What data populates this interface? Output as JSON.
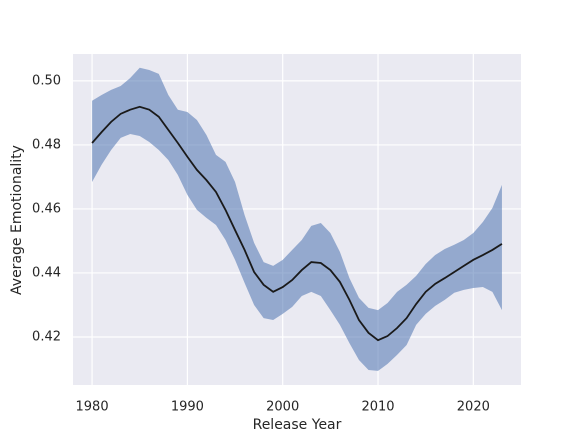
{
  "chart_data": {
    "type": "line",
    "xlabel": "Release Year",
    "ylabel": "Average Emotionality",
    "x": [
      1980,
      1981,
      1982,
      1983,
      1984,
      1985,
      1986,
      1987,
      1988,
      1989,
      1990,
      1991,
      1992,
      1993,
      1994,
      1995,
      1996,
      1997,
      1998,
      1999,
      2000,
      2001,
      2002,
      2003,
      2004,
      2005,
      2006,
      2007,
      2008,
      2009,
      2010,
      2011,
      2012,
      2013,
      2014,
      2015,
      2016,
      2017,
      2018,
      2019,
      2020,
      2021,
      2022,
      2023
    ],
    "values": [
      0.4806,
      0.484,
      0.4872,
      0.4897,
      0.491,
      0.4919,
      0.491,
      0.4888,
      0.4847,
      0.4806,
      0.4763,
      0.4722,
      0.469,
      0.4653,
      0.4597,
      0.4534,
      0.4472,
      0.4403,
      0.4363,
      0.4341,
      0.4356,
      0.4378,
      0.4409,
      0.4434,
      0.4431,
      0.4409,
      0.4372,
      0.4316,
      0.4253,
      0.4213,
      0.419,
      0.4203,
      0.4228,
      0.4259,
      0.4303,
      0.4341,
      0.4366,
      0.4384,
      0.4403,
      0.4422,
      0.4441,
      0.4456,
      0.4472,
      0.4491
    ],
    "ci_upper": [
      0.4938,
      0.4956,
      0.4972,
      0.4984,
      0.5009,
      0.5041,
      0.5034,
      0.5022,
      0.4956,
      0.491,
      0.4903,
      0.4878,
      0.4831,
      0.4769,
      0.4747,
      0.4684,
      0.4581,
      0.4494,
      0.4434,
      0.4422,
      0.4441,
      0.4472,
      0.4503,
      0.4547,
      0.4556,
      0.4525,
      0.4466,
      0.4384,
      0.4322,
      0.4291,
      0.4284,
      0.4306,
      0.4341,
      0.4363,
      0.4391,
      0.4428,
      0.4456,
      0.4475,
      0.4488,
      0.4503,
      0.4525,
      0.4559,
      0.4603,
      0.4675
    ],
    "ci_lower": [
      0.4684,
      0.4738,
      0.4784,
      0.4822,
      0.4834,
      0.4828,
      0.4809,
      0.4784,
      0.4753,
      0.4706,
      0.4644,
      0.4597,
      0.4572,
      0.455,
      0.4503,
      0.4441,
      0.4369,
      0.43,
      0.4259,
      0.4253,
      0.4272,
      0.4294,
      0.4328,
      0.4341,
      0.4328,
      0.4284,
      0.4238,
      0.4181,
      0.4128,
      0.4097,
      0.4094,
      0.4116,
      0.4144,
      0.4175,
      0.4238,
      0.4272,
      0.4297,
      0.4316,
      0.4338,
      0.4347,
      0.4353,
      0.4356,
      0.4341,
      0.4284
    ],
    "color": "#1a1a1a",
    "band_color": "#4c72b0",
    "xlim": [
      1978,
      2025
    ],
    "ylim": [
      0.405,
      0.5084
    ],
    "xticks": [
      1980,
      1990,
      2000,
      2010,
      2020
    ],
    "yticks": [
      {
        "value": 0.42,
        "label": "0.42"
      },
      {
        "value": 0.44,
        "label": "0.44"
      },
      {
        "value": 0.46,
        "label": "0.46"
      },
      {
        "value": 0.48,
        "label": "0.48"
      },
      {
        "value": 0.5,
        "label": "0.50"
      }
    ],
    "grid": true
  }
}
